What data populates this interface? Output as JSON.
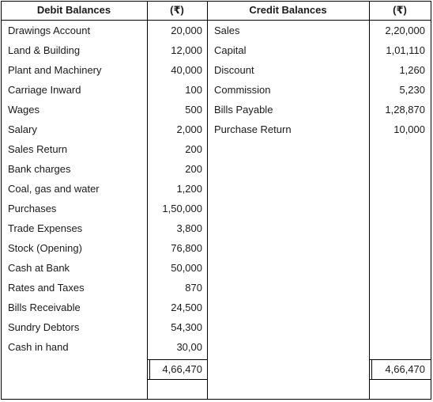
{
  "headers": {
    "debit": "Debit Balances",
    "debit_amount": "(₹)",
    "credit": "Credit Balances",
    "credit_amount": "(₹)"
  },
  "debit_rows": [
    {
      "label": "Drawings Account",
      "amount": "20,000"
    },
    {
      "label": "Land & Building",
      "amount": "12,000"
    },
    {
      "label": "Plant and Machinery",
      "amount": "40,000"
    },
    {
      "label": "Carriage Inward",
      "amount": "100"
    },
    {
      "label": "Wages",
      "amount": "500"
    },
    {
      "label": "Salary",
      "amount": "2,000"
    },
    {
      "label": "Sales Return",
      "amount": "200"
    },
    {
      "label": "Bank charges",
      "amount": "200"
    },
    {
      "label": "Coal, gas and water",
      "amount": "1,200"
    },
    {
      "label": "Purchases",
      "amount": "1,50,000"
    },
    {
      "label": "Trade Expenses",
      "amount": "3,800"
    },
    {
      "label": "Stock (Opening)",
      "amount": "76,800"
    },
    {
      "label": "Cash at Bank",
      "amount": "50,000"
    },
    {
      "label": "Rates and Taxes",
      "amount": "870"
    },
    {
      "label": "Bills Receivable",
      "amount": "24,500"
    },
    {
      "label": "Sundry Debtors",
      "amount": "54,300"
    },
    {
      "label": "Cash in hand",
      "amount": "30,00"
    }
  ],
  "credit_rows": [
    {
      "label": "Sales",
      "amount": "2,20,000"
    },
    {
      "label": "Capital",
      "amount": "1,01,110"
    },
    {
      "label": "Discount",
      "amount": "1,260"
    },
    {
      "label": "Commission",
      "amount": "5,230"
    },
    {
      "label": "Bills Payable",
      "amount": "1,28,870"
    },
    {
      "label": "Purchase Return",
      "amount": "10,000"
    }
  ],
  "totals": {
    "debit": "4,66,470",
    "credit": "4,66,470"
  }
}
